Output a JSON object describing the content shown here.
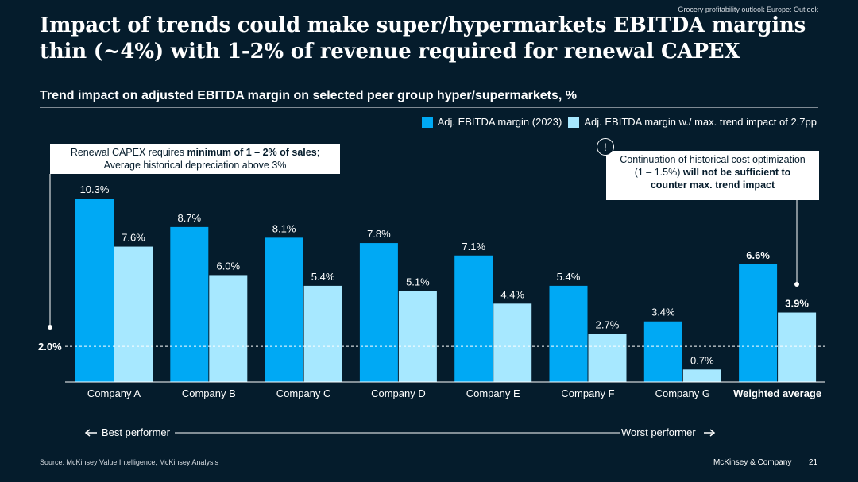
{
  "breadcrumb": "Grocery profitability outlook Europe: Outlook",
  "title_line1": "Impact of trends could make super/hypermarkets EBITDA margins",
  "title_line2": "thin (~4%) with 1-2% of revenue required for renewal CAPEX",
  "subtitle": "Trend impact on adjusted EBITDA margin on selected peer group hyper/supermarkets, %",
  "colors": {
    "background": "#051C2C",
    "series_dark": "#00A9F4",
    "series_light": "#A7E8FF"
  },
  "callout_left": {
    "part1": "Renewal CAPEX requires ",
    "bold": "minimum of 1 – 2% of sales",
    "part2": ";",
    "line2": "Average historical depreciation above 3%"
  },
  "callout_right": {
    "line1": "Continuation of historical cost optimization",
    "part1": "(1 – 1.5%) ",
    "bold1": "will not be sufficient to",
    "bold2": "counter max. trend impact"
  },
  "warning_icon": "!",
  "performer_left": "Best performer",
  "performer_right": "Worst performer",
  "footer": {
    "source": "Source: McKinsey Value Intelligence, McKinsey Analysis",
    "brand": "McKinsey & Company",
    "page": "21"
  },
  "chart_data": {
    "type": "bar",
    "categories": [
      "Company A",
      "Company B",
      "Company C",
      "Company D",
      "Company E",
      "Company F",
      "Company G",
      "Weighted average"
    ],
    "series": [
      {
        "name": "Adj. EBITDA margin (2023)",
        "values": [
          10.3,
          8.7,
          8.1,
          7.8,
          7.1,
          5.4,
          3.4,
          6.6
        ],
        "labels": [
          "10.3%",
          "8.7%",
          "8.1%",
          "7.8%",
          "7.1%",
          "5.4%",
          "3.4%",
          "6.6%"
        ]
      },
      {
        "name": "Adj. EBITDA margin w./ max. trend impact of 2.7pp",
        "values": [
          7.6,
          6.0,
          5.4,
          5.1,
          4.4,
          2.7,
          0.7,
          3.9
        ],
        "labels": [
          "7.6%",
          "6.0%",
          "5.4%",
          "5.1%",
          "4.4%",
          "2.7%",
          "0.7%",
          "3.9%"
        ]
      }
    ],
    "reference_line": {
      "value": 2.0,
      "label": "2.0%"
    },
    "ylim": [
      0,
      10.3
    ],
    "bold_category": "Weighted average"
  }
}
